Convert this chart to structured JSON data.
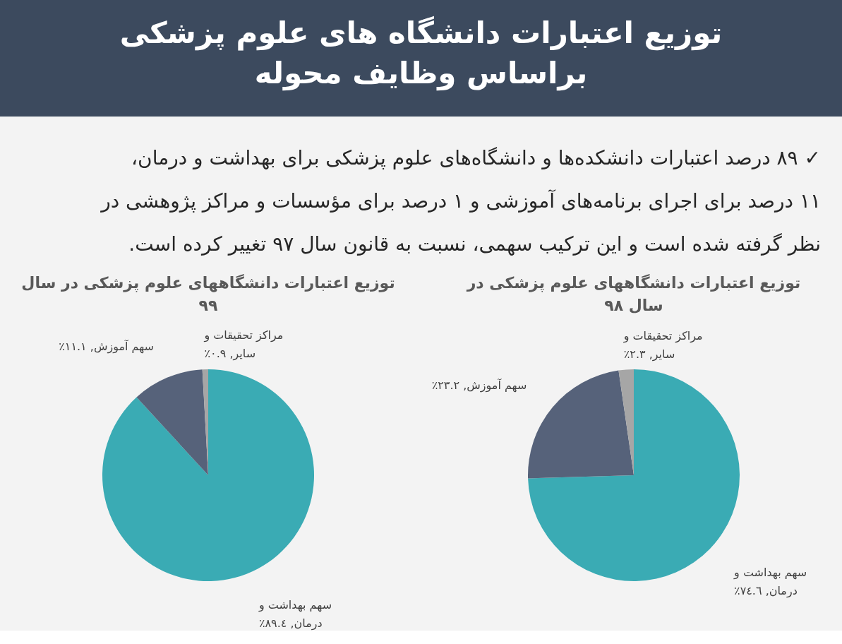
{
  "chart_data": [
    {
      "type": "other",
      "title": "توزیع اعتبارات دانشگاه های علوم پزشکی براساس وظایف محوله",
      "annotations": [
        "✓ ۸۹ درصد اعتبارات دانشکده‌ها و دانشگاه‌های علوم پزشکی برای بهداشت و درمان، ۱۱ درصد برای اجرای برنامه‌های آموزشی و ۱ درصد برای مؤسسات و مراکز پژوهشی در نظر گرفته شده است و این ترکیب سهمی، نسبت به قانون سال ۹۷ تغییر کرده است."
      ]
    },
    {
      "type": "pie",
      "title": "توزیع اعتبارات دانشگاههای علوم پزشکی در سال ۹۸",
      "categories": [
        "سهم بهداشت و درمان",
        "سهم آموزش",
        "مراکز تحقیقات و سایر"
      ],
      "values": [
        74.6,
        23.2,
        2.3
      ],
      "colors": [
        "#3aabb4",
        "#56627a",
        "#a6a6a6"
      ],
      "value_labels": [
        "٧٤.٦٪",
        "٢٣.٢٪",
        "٢.٣٪"
      ]
    },
    {
      "type": "pie",
      "title": "توزیع اعتبارات دانشگاههای علوم پزشکی در سال ۹۹",
      "categories": [
        "سهم بهداشت و درمان",
        "سهم آموزش",
        "مراکز تحقیقات و سایر"
      ],
      "values": [
        89.4,
        11.1,
        0.9
      ],
      "colors": [
        "#3aabb4",
        "#56627a",
        "#a6a6a6"
      ],
      "value_labels": [
        "٨٩.٤٪",
        "١١.١٪",
        "٠.٩٪"
      ]
    }
  ]
}
